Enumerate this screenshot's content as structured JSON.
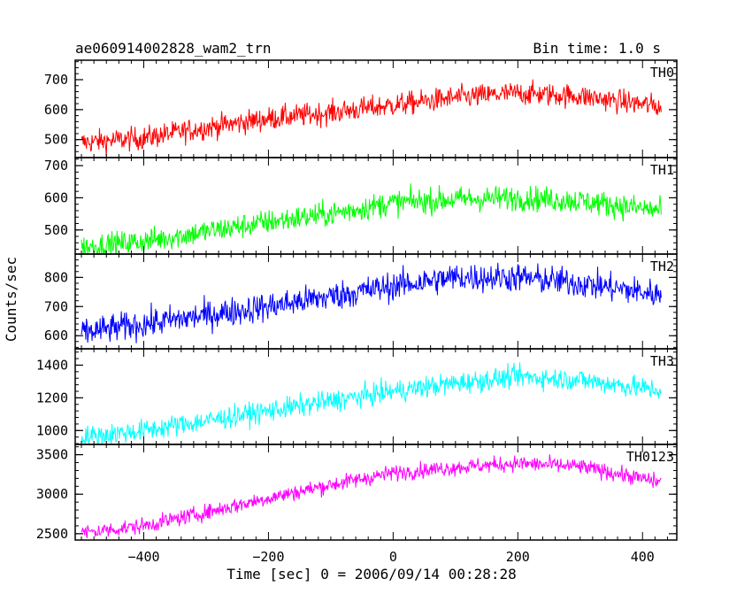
{
  "header": {
    "title": "ae060914002828_wam2_trn",
    "bin_time": "Bin time: 1.0 s"
  },
  "chart_data": {
    "type": "line",
    "title": "ae060914002828_wam2_trn",
    "xlabel": "Time [sec] 0 = 2006/09/14 00:28:28",
    "ylabel": "Counts/sec",
    "xlim": [
      -510,
      455
    ],
    "x_ticks": [
      -400,
      -200,
      0,
      200,
      400
    ],
    "x_tick_labels": [
      "−400",
      "−200",
      "0",
      "200",
      "400"
    ],
    "x_range": [
      -500,
      430
    ],
    "grid": false,
    "series": [
      {
        "name": "TH0",
        "color": "#ff0000",
        "ylim": [
          440,
          765
        ],
        "y_ticks": [
          500,
          600,
          700
        ],
        "trend": [
          [
            -500,
            490
          ],
          [
            -400,
            505
          ],
          [
            -300,
            540
          ],
          [
            -200,
            570
          ],
          [
            -100,
            590
          ],
          [
            0,
            615
          ],
          [
            100,
            640
          ],
          [
            200,
            655
          ],
          [
            300,
            645
          ],
          [
            430,
            610
          ]
        ],
        "noise_amplitude": 35
      },
      {
        "name": "TH1",
        "color": "#00ff00",
        "ylim": [
          425,
          725
        ],
        "y_ticks": [
          500,
          600,
          700
        ],
        "trend": [
          [
            -500,
            445
          ],
          [
            -400,
            465
          ],
          [
            -300,
            495
          ],
          [
            -200,
            525
          ],
          [
            -100,
            550
          ],
          [
            0,
            585
          ],
          [
            100,
            595
          ],
          [
            200,
            600
          ],
          [
            300,
            590
          ],
          [
            430,
            560
          ]
        ],
        "noise_amplitude": 35
      },
      {
        "name": "TH2",
        "color": "#0000ff",
        "ylim": [
          555,
          880
        ],
        "y_ticks": [
          600,
          700,
          800
        ],
        "trend": [
          [
            -500,
            610
          ],
          [
            -400,
            640
          ],
          [
            -300,
            670
          ],
          [
            -200,
            700
          ],
          [
            -100,
            735
          ],
          [
            0,
            770
          ],
          [
            100,
            800
          ],
          [
            200,
            800
          ],
          [
            300,
            780
          ],
          [
            430,
            740
          ]
        ],
        "noise_amplitude": 45
      },
      {
        "name": "TH3",
        "color": "#00ffff",
        "ylim": [
          915,
          1500
        ],
        "y_ticks": [
          1000,
          1200,
          1400
        ],
        "trend": [
          [
            -500,
            960
          ],
          [
            -400,
            1000
          ],
          [
            -300,
            1060
          ],
          [
            -200,
            1120
          ],
          [
            -100,
            1180
          ],
          [
            0,
            1240
          ],
          [
            100,
            1290
          ],
          [
            200,
            1330
          ],
          [
            300,
            1310
          ],
          [
            430,
            1245
          ]
        ],
        "noise_amplitude": 60
      },
      {
        "name": "TH0123",
        "color": "#ff00ff",
        "ylim": [
          2420,
          3630
        ],
        "y_ticks": [
          2500,
          3000,
          3500
        ],
        "trend": [
          [
            -500,
            2510
          ],
          [
            -400,
            2600
          ],
          [
            -300,
            2770
          ],
          [
            -200,
            2950
          ],
          [
            -100,
            3120
          ],
          [
            0,
            3270
          ],
          [
            100,
            3340
          ],
          [
            200,
            3390
          ],
          [
            300,
            3350
          ],
          [
            430,
            3150
          ]
        ],
        "noise_amplitude": 90
      }
    ]
  }
}
